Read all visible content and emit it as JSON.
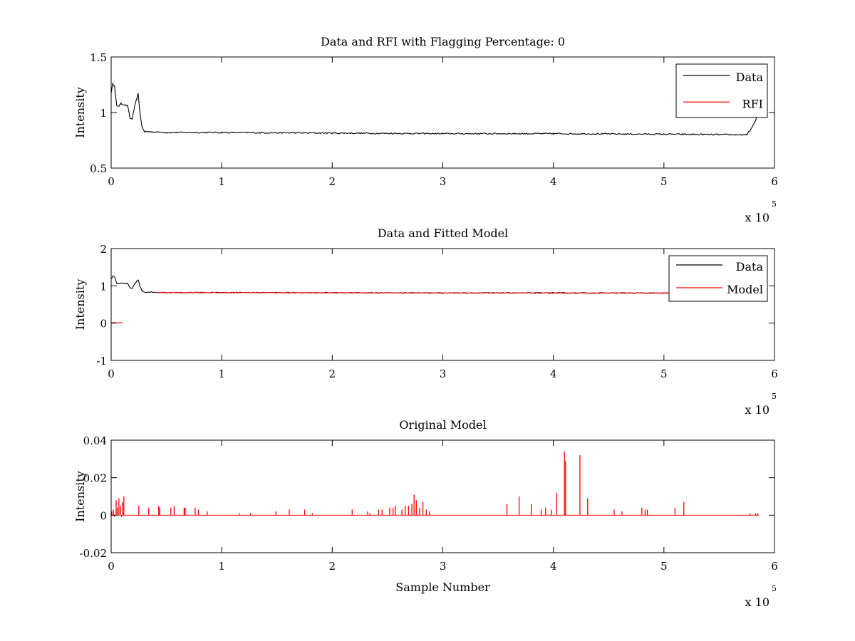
{
  "figure": {
    "background": "#ffffff",
    "axis_color": "#000000"
  },
  "chart_data": [
    {
      "type": "line",
      "title": "Data and RFI with Flagging Percentage: 0",
      "xlabel": "",
      "ylabel": "Intensity",
      "xlim": [
        0,
        600000
      ],
      "ylim": [
        0.5,
        1.5
      ],
      "x_ticks": [
        0,
        100000,
        200000,
        300000,
        400000,
        500000,
        600000
      ],
      "x_tick_labels": [
        "0",
        "1",
        "2",
        "3",
        "4",
        "5",
        "6"
      ],
      "y_ticks": [
        0.5,
        1,
        1.5
      ],
      "y_tick_labels": [
        "0.5",
        "1",
        "1.5"
      ],
      "x_multiplier": {
        "base": "x 10",
        "exponent": "5"
      },
      "legend": {
        "position": "top-right",
        "entries": [
          "Data",
          "RFI"
        ]
      },
      "series": [
        {
          "name": "Data",
          "color": "#000000",
          "noise": 0.006,
          "x": [
            0,
            1500,
            3000,
            5000,
            7000,
            9000,
            12000,
            15000,
            17000,
            19000,
            21000,
            23000,
            24500,
            26000,
            28000,
            30000,
            50000,
            100000,
            200000,
            300000,
            400000,
            500000,
            570000,
            575000,
            577000,
            580000,
            583000,
            586000
          ],
          "y": [
            1.18,
            1.26,
            1.24,
            1.06,
            1.06,
            1.08,
            1.07,
            1.06,
            0.95,
            0.94,
            1.04,
            1.12,
            1.17,
            1.0,
            0.87,
            0.83,
            0.82,
            0.82,
            0.815,
            0.81,
            0.81,
            0.805,
            0.8,
            0.8,
            0.83,
            0.87,
            0.93,
            1.02
          ]
        },
        {
          "name": "RFI",
          "color": "#ff0000",
          "x": [],
          "y": []
        }
      ]
    },
    {
      "type": "line",
      "title": "Data and Fitted Model",
      "xlabel": "",
      "ylabel": "Intensity",
      "xlim": [
        0,
        600000
      ],
      "ylim": [
        -1,
        2
      ],
      "x_ticks": [
        0,
        100000,
        200000,
        300000,
        400000,
        500000,
        600000
      ],
      "x_tick_labels": [
        "0",
        "1",
        "2",
        "3",
        "4",
        "5",
        "6"
      ],
      "y_ticks": [
        -1,
        0,
        1,
        2
      ],
      "y_tick_labels": [
        "-1",
        "0",
        "1",
        "2"
      ],
      "x_multiplier": {
        "base": "x 10",
        "exponent": "5"
      },
      "legend": {
        "position": "top-right",
        "entries": [
          "Data",
          "Model"
        ]
      },
      "series": [
        {
          "name": "Data",
          "color": "#000000",
          "noise": 0.012,
          "x": [
            0,
            1500,
            3000,
            5000,
            7000,
            9000,
            12000,
            15000,
            17000,
            19000,
            21000,
            23000,
            24500,
            26000,
            28000,
            30000,
            50000,
            100000,
            200000,
            300000,
            400000,
            500000,
            586000
          ],
          "y": [
            1.18,
            1.26,
            1.24,
            1.06,
            1.06,
            1.08,
            1.07,
            1.06,
            0.95,
            0.94,
            1.04,
            1.12,
            1.17,
            1.0,
            0.87,
            0.83,
            0.82,
            0.82,
            0.815,
            0.81,
            0.81,
            0.805,
            0.8
          ]
        },
        {
          "name": "Model",
          "color": "#ff0000",
          "noise": 0.01,
          "x": [
            0,
            10000,
            10001,
            40000,
            100000,
            200000,
            300000,
            400000,
            500000,
            560000
          ],
          "y": [
            0.01,
            0.01,
            null,
            0.82,
            0.82,
            0.815,
            0.81,
            0.81,
            0.805,
            0.8
          ]
        }
      ]
    },
    {
      "type": "line",
      "title": "Original Model",
      "xlabel": "Sample Number",
      "ylabel": "Intensity",
      "xlim": [
        0,
        600000
      ],
      "ylim": [
        -0.02,
        0.04
      ],
      "x_ticks": [
        0,
        100000,
        200000,
        300000,
        400000,
        500000,
        600000
      ],
      "x_tick_labels": [
        "0",
        "1",
        "2",
        "3",
        "4",
        "5",
        "6"
      ],
      "y_ticks": [
        -0.02,
        0,
        0.02,
        0.04
      ],
      "y_tick_labels": [
        "-0.02",
        "0",
        "0.02",
        "0.04"
      ],
      "x_multiplier": {
        "base": "x 10",
        "exponent": "5"
      },
      "legend": null,
      "series": [
        {
          "name": "",
          "color": "#ff0000",
          "baseline": 0,
          "xmax": 586000,
          "spikes": [
            [
              500,
              0.002
            ],
            [
              2000,
              0.003
            ],
            [
              3000,
              -0.001
            ],
            [
              4500,
              0.008
            ],
            [
              5500,
              0.004
            ],
            [
              7000,
              0.009
            ],
            [
              8500,
              0.005
            ],
            [
              9500,
              -0.001
            ],
            [
              10500,
              0.007
            ],
            [
              11500,
              0.01
            ],
            [
              25000,
              0.005
            ],
            [
              34000,
              0.004
            ],
            [
              43000,
              0.005
            ],
            [
              44000,
              0.004
            ],
            [
              54000,
              0.004
            ],
            [
              57000,
              0.005
            ],
            [
              66000,
              0.004
            ],
            [
              67000,
              0.004
            ],
            [
              76000,
              0.004
            ],
            [
              79000,
              0.003
            ],
            [
              87000,
              0.002
            ],
            [
              116000,
              0.001
            ],
            [
              126000,
              0.001
            ],
            [
              149000,
              0.002
            ],
            [
              161000,
              0.003
            ],
            [
              175000,
              0.003
            ],
            [
              182000,
              0.001
            ],
            [
              218000,
              0.003
            ],
            [
              232000,
              0.002
            ],
            [
              234000,
              0.001
            ],
            [
              242000,
              0.003
            ],
            [
              245000,
              0.003
            ],
            [
              252000,
              0.004
            ],
            [
              255000,
              0.004
            ],
            [
              257000,
              0.005
            ],
            [
              263000,
              0.003
            ],
            [
              266000,
              0.005
            ],
            [
              269000,
              0.005
            ],
            [
              272000,
              0.006
            ],
            [
              274000,
              0.011
            ],
            [
              276000,
              0.008
            ],
            [
              279000,
              0.004
            ],
            [
              282000,
              0.007
            ],
            [
              285000,
              0.003
            ],
            [
              288000,
              0.002
            ],
            [
              358000,
              0.006
            ],
            [
              366000,
              0.0
            ],
            [
              369000,
              0.01
            ],
            [
              380000,
              0.006
            ],
            [
              389000,
              0.003
            ],
            [
              393000,
              0.004
            ],
            [
              398000,
              0.003
            ],
            [
              403000,
              0.012
            ],
            [
              410000,
              0.034
            ],
            [
              411000,
              0.029
            ],
            [
              424000,
              0.032
            ],
            [
              431000,
              0.009
            ],
            [
              455000,
              0.003
            ],
            [
              462000,
              0.002
            ],
            [
              480000,
              0.004
            ],
            [
              483000,
              0.003
            ],
            [
              485000,
              0.003
            ],
            [
              510000,
              0.004
            ],
            [
              518000,
              0.007
            ],
            [
              578000,
              0.001
            ],
            [
              583000,
              0.001
            ],
            [
              585000,
              0.001
            ]
          ]
        }
      ]
    }
  ]
}
